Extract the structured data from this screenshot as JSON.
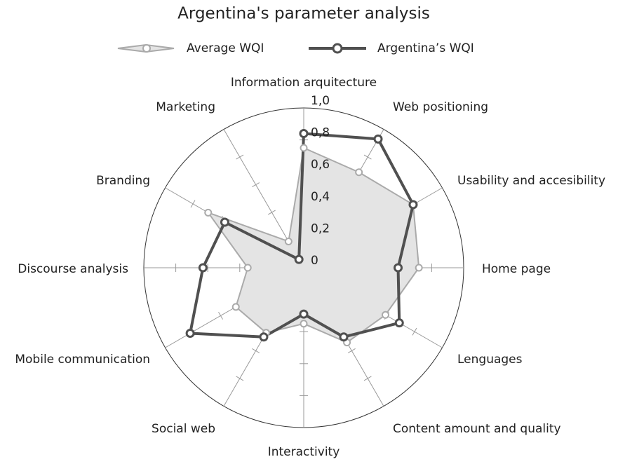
{
  "chart_data": {
    "type": "radar",
    "title": "Argentina's parameter analysis",
    "categories": [
      "Information arquitecture",
      "Web positioning",
      "Usability and accesibility",
      "Home page",
      "Lenguages",
      "Content amount and quality",
      "Interactivity",
      "Social web",
      "Mobile communication",
      "Discourse analysis",
      "Branding",
      "Marketing"
    ],
    "series": [
      {
        "name": "Average WQI",
        "color": "#aaaaaa",
        "fill": "#e4e4e4",
        "values": [
          0.75,
          0.69,
          0.79,
          0.72,
          0.59,
          0.54,
          0.35,
          0.47,
          0.49,
          0.35,
          0.69,
          0.19
        ]
      },
      {
        "name": "Argentina’s WQI",
        "color": "#505050",
        "values": [
          0.84,
          0.93,
          0.79,
          0.59,
          0.69,
          0.5,
          0.29,
          0.5,
          0.82,
          0.63,
          0.57,
          0.06
        ]
      }
    ],
    "rlim": [
      0,
      1
    ],
    "rticks": [
      0,
      {
        "value": 0.2,
        "label": "0,2"
      },
      {
        "value": 0.4,
        "label": "0,4"
      },
      {
        "value": 0.6,
        "label": "0,6"
      },
      {
        "value": 0.8,
        "label": "0,8"
      },
      {
        "value": 1,
        "label": "1,0"
      }
    ],
    "grid": true
  }
}
